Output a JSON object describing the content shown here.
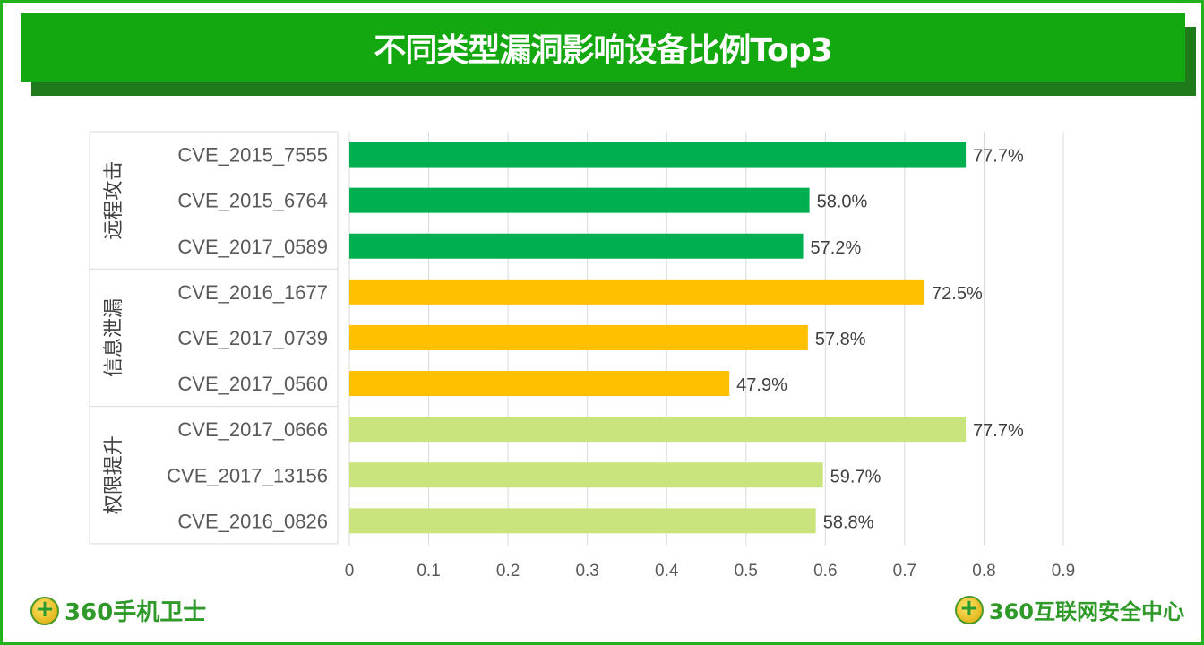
{
  "title": "不同类型漏洞影响设备比例Top3",
  "chart_data": {
    "type": "bar",
    "orientation": "horizontal",
    "title": "不同类型漏洞影响设备比例Top3",
    "groups": [
      {
        "name": "远程攻击",
        "color": "#00B050",
        "categories": [
          "CVE_2015_7555",
          "CVE_2015_6764",
          "CVE_2017_0589"
        ],
        "values": [
          0.777,
          0.58,
          0.572
        ],
        "labels": [
          "77.7%",
          "58.0%",
          "57.2%"
        ]
      },
      {
        "name": "信息泄漏",
        "color": "#FFC000",
        "categories": [
          "CVE_2016_1677",
          "CVE_2017_0739",
          "CVE_2017_0560"
        ],
        "values": [
          0.725,
          0.578,
          0.479
        ],
        "labels": [
          "72.5%",
          "57.8%",
          "47.9%"
        ]
      },
      {
        "name": "权限提升",
        "color": "#C9E47D",
        "categories": [
          "CVE_2017_0666",
          "CVE_2017_13156",
          "CVE_2016_0826"
        ],
        "values": [
          0.777,
          0.597,
          0.588
        ],
        "labels": [
          "77.7%",
          "59.7%",
          "58.8%"
        ]
      }
    ],
    "xlim": [
      0,
      0.9
    ],
    "xticks": [
      "0",
      "0.1",
      "0.2",
      "0.3",
      "0.4",
      "0.5",
      "0.6",
      "0.7",
      "0.8",
      "0.9"
    ],
    "grid": true,
    "legend": "none"
  },
  "logos": {
    "left": "360手机卫士",
    "right": "360互联网安全中心"
  }
}
